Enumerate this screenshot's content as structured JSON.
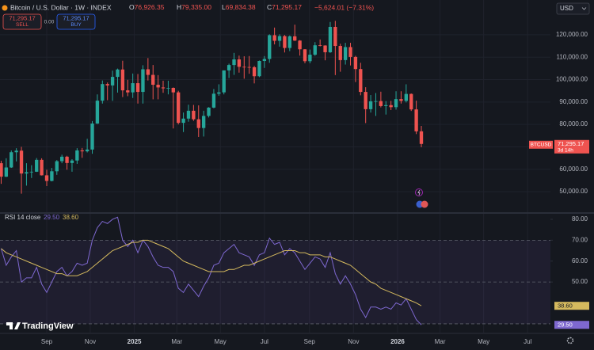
{
  "header": {
    "symbol": "Bitcoin / U.S. Dollar · 1W · INDEX",
    "ohlc": [
      {
        "label": "O",
        "value": "76,926.35"
      },
      {
        "label": "H",
        "value": "79,335.00"
      },
      {
        "label": "L",
        "value": "69,834.38"
      },
      {
        "label": "C",
        "value": "71,295.17"
      }
    ],
    "change": "−5,624.01 (−7.31%)",
    "currency": "USD"
  },
  "trade": {
    "sell_price": "71,295.17",
    "sell": "SELL",
    "spread": "0.00",
    "buy_price": "71,295.17",
    "buy": "BUY"
  },
  "price_tag": {
    "symbol": "BTCUSD",
    "price": "71,295.17",
    "countdown": "3d 14h"
  },
  "branding": "TradingView",
  "chart_data": [
    {
      "type": "candlestick",
      "up_color": "#26a69a",
      "down_color": "#ef5350",
      "grid": true,
      "xlim": [
        -0.23,
        108.5
      ],
      "xticks": [
        {
          "value": 9,
          "label": "Sep"
        },
        {
          "value": 17.6,
          "label": "Nov"
        },
        {
          "value": 26.3,
          "label": "2025"
        },
        {
          "value": 34.7,
          "label": "Mar"
        },
        {
          "value": 43.3,
          "label": "May"
        },
        {
          "value": 52,
          "label": "Jul"
        },
        {
          "value": 60.9,
          "label": "Sep"
        },
        {
          "value": 69.6,
          "label": "Nov"
        },
        {
          "value": 78.3,
          "label": "2026"
        },
        {
          "value": 86.7,
          "label": "Mar"
        },
        {
          "value": 95.3,
          "label": "May"
        },
        {
          "value": 104,
          "label": "Jul"
        }
      ],
      "ylim": [
        41900,
        135500
      ],
      "yticks": [
        {
          "value": 50000,
          "label": "50,000.00"
        },
        {
          "value": 60000,
          "label": "60,000.00"
        },
        {
          "value": 70000,
          "label": "70,000.00"
        },
        {
          "value": 80000,
          "label": "80,000.00"
        },
        {
          "value": 90000,
          "label": "90,000.00"
        },
        {
          "value": 100000,
          "label": "100,000.00"
        },
        {
          "value": 110000,
          "label": "110,000.00"
        },
        {
          "value": 120000,
          "label": "120,000.00"
        }
      ],
      "open": [
        62700,
        56700,
        60800,
        67600,
        68300,
        58100,
        58700,
        58900,
        64200,
        57300,
        54800,
        59100,
        63600,
        65600,
        62800,
        63900,
        68400,
        68000,
        68800,
        80400,
        90600,
        98000,
        97400,
        101200,
        104500,
        95200,
        94300,
        98400,
        94500,
        104600,
        102100,
        97700,
        96500,
        96100,
        96300,
        94300,
        80700,
        82600,
        86100,
        82300,
        78400,
        83800,
        87500,
        93700,
        94300,
        104100,
        106500,
        109000,
        105700,
        105600,
        105500,
        101500,
        108300,
        109200,
        119800,
        117300,
        119400,
        114100,
        119300,
        117400,
        113500,
        108200,
        111100,
        115300,
        115200,
        112200,
        123500,
        115000,
        108700,
        114500,
        110100,
        104700,
        94500,
        86800,
        90300,
        90400,
        88200,
        88600,
        87700,
        91300,
        90500,
        93600,
        86700,
        76926.35
      ],
      "high": [
        63800,
        64900,
        68400,
        69400,
        70000,
        62700,
        61800,
        65000,
        64900,
        59800,
        60600,
        64100,
        66500,
        66000,
        64500,
        69400,
        69500,
        73600,
        81500,
        93400,
        99600,
        98700,
        104000,
        104900,
        108400,
        99900,
        102700,
        102500,
        106400,
        109600,
        106500,
        102000,
        99500,
        99500,
        96500,
        95000,
        85300,
        88800,
        88700,
        88500,
        86100,
        87700,
        95800,
        97900,
        104100,
        107100,
        111900,
        110700,
        110400,
        110500,
        106100,
        108500,
        110500,
        120200,
        123200,
        120200,
        119900,
        119700,
        124500,
        117600,
        113600,
        113400,
        116700,
        117900,
        115300,
        125700,
        126200,
        116000,
        116400,
        116400,
        110600,
        107500,
        96600,
        93100,
        94000,
        94600,
        90400,
        90500,
        94800,
        94800,
        97900,
        93800,
        90600,
        79335
      ],
      "low": [
        53500,
        56500,
        60600,
        63500,
        49100,
        52700,
        56100,
        58800,
        57200,
        52500,
        54600,
        57500,
        62700,
        59800,
        58900,
        62400,
        65100,
        67500,
        66900,
        80200,
        89300,
        90800,
        90500,
        94200,
        92200,
        92600,
        91800,
        89300,
        89300,
        99600,
        91200,
        91200,
        94100,
        93400,
        78200,
        80000,
        76600,
        81200,
        81600,
        74400,
        74600,
        83100,
        87200,
        92800,
        93400,
        100700,
        102100,
        103100,
        100400,
        102600,
        98300,
        101100,
        105200,
        107500,
        115700,
        114700,
        112100,
        112700,
        117200,
        110700,
        107300,
        107300,
        110600,
        114800,
        108600,
        111900,
        102000,
        103500,
        106700,
        106300,
        98900,
        93000,
        80600,
        85300,
        83800,
        87600,
        84400,
        86400,
        86600,
        89300,
        89800,
        86000,
        75700,
        69834.38
      ],
      "close": [
        56700,
        60800,
        67600,
        68300,
        58100,
        58700,
        58900,
        64200,
        57300,
        54800,
        59100,
        63600,
        65600,
        62800,
        63900,
        68400,
        68000,
        68800,
        80400,
        90600,
        98000,
        97400,
        101200,
        104500,
        95200,
        94300,
        98400,
        94500,
        104600,
        102100,
        97700,
        96500,
        96100,
        96300,
        94300,
        80700,
        82600,
        86100,
        82300,
        78400,
        83800,
        87500,
        93700,
        94300,
        104100,
        106500,
        109000,
        105700,
        105600,
        105500,
        101500,
        108300,
        109200,
        119800,
        117300,
        119400,
        114100,
        119300,
        117400,
        113500,
        108200,
        111100,
        115300,
        115200,
        112200,
        123500,
        115000,
        108700,
        114500,
        110100,
        104700,
        94500,
        86800,
        90300,
        90400,
        88200,
        88600,
        87700,
        91300,
        90500,
        93600,
        86700,
        76919.18,
        71295.17
      ]
    },
    {
      "type": "line",
      "title": "RSI 14 close",
      "grid": true,
      "ylim": [
        25.8,
        81.5
      ],
      "yticks": [
        {
          "value": 50,
          "label": "50.00"
        },
        {
          "value": 60,
          "label": "60.00"
        },
        {
          "value": 70,
          "label": "70.00"
        },
        {
          "value": 80,
          "label": "80.00"
        }
      ],
      "levels": [
        70,
        50,
        30
      ],
      "band_color": "#7e57c2",
      "series": [
        {
          "color": "#7e68d0",
          "value_label": "29.50",
          "values": [
            66,
            58,
            62,
            65,
            50,
            52,
            52,
            57,
            49,
            45,
            50,
            55,
            57,
            53,
            55,
            59,
            58,
            59,
            70,
            76,
            79,
            78,
            80,
            81,
            70,
            67,
            70,
            64,
            70,
            67,
            62,
            58,
            57,
            57,
            55,
            47,
            45,
            49,
            46,
            43,
            48,
            52,
            58,
            59,
            64,
            66,
            68,
            64,
            63,
            62,
            58,
            63,
            64,
            71,
            68,
            69,
            63,
            66,
            64,
            60,
            56,
            59,
            62,
            61,
            57,
            64,
            54,
            49,
            53,
            49,
            44,
            37,
            33,
            38,
            38,
            37,
            38,
            37,
            40,
            39,
            42,
            37,
            32,
            29.5
          ]
        },
        {
          "color": "#d4b95e",
          "value_label": "38.60",
          "values": [
            66,
            64,
            63,
            62,
            61,
            60,
            59,
            58,
            57,
            56,
            55,
            54,
            54,
            53,
            53,
            53,
            54,
            55,
            57,
            59,
            61,
            63,
            65,
            66,
            67,
            68,
            69,
            69,
            70,
            70,
            69,
            68,
            67,
            66,
            64,
            62,
            60,
            59,
            58,
            57,
            56,
            55,
            55,
            55,
            55,
            56,
            56,
            57,
            58,
            58,
            59,
            60,
            61,
            62,
            63,
            64,
            65,
            65,
            65,
            64,
            64,
            63,
            63,
            63,
            62,
            62,
            61,
            60,
            59,
            58,
            56,
            54,
            52,
            50,
            49,
            47,
            46,
            45,
            44,
            43,
            42,
            41,
            40,
            38.6
          ]
        }
      ]
    }
  ]
}
